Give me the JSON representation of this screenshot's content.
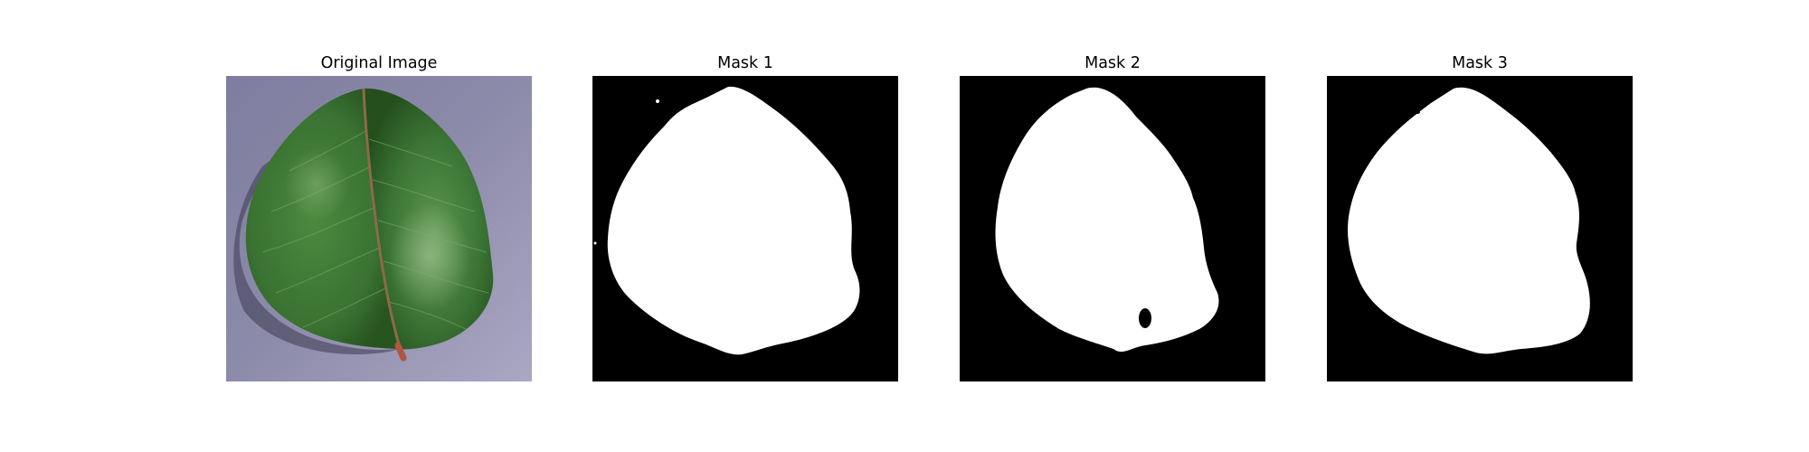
{
  "figure": {
    "background_color": "#ffffff",
    "panels": [
      {
        "title": "Original Image",
        "content": "photo of green leaf on grey-purple background",
        "colors": {
          "background": "#8b89a8",
          "leaf_dark": "#2a5a26",
          "leaf_mid": "#3f7a35",
          "leaf_light": "#6fa25f",
          "midrib": "#8a6a4a",
          "stem": "#b0563f"
        }
      },
      {
        "title": "Mask 1",
        "content": "binary mask",
        "colors": {
          "background": "#000000",
          "foreground": "#ffffff"
        }
      },
      {
        "title": "Mask 2",
        "content": "binary mask",
        "colors": {
          "background": "#000000",
          "foreground": "#ffffff"
        }
      },
      {
        "title": "Mask 3",
        "content": "binary mask",
        "colors": {
          "background": "#000000",
          "foreground": "#ffffff"
        }
      }
    ]
  }
}
